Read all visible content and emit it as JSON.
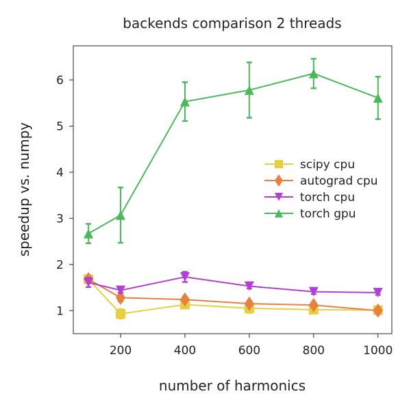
{
  "chart_data": {
    "type": "line",
    "title": "backends comparison 2 threads",
    "xlabel": "number of harmonics",
    "ylabel": "speedup vs. numpy",
    "x": [
      100,
      200,
      400,
      600,
      800,
      1000
    ],
    "xlim": [
      53,
      1043
    ],
    "ylim": [
      0.5,
      6.74
    ],
    "xticks": [
      200,
      400,
      600,
      800,
      1000
    ],
    "yticks": [
      1,
      2,
      3,
      4,
      5,
      6
    ],
    "grid": false,
    "legend_position": "center-right",
    "series": [
      {
        "name": "scipy cpu",
        "color": "#e8cf3f",
        "marker": "square",
        "values": [
          1.68,
          0.93,
          1.13,
          1.05,
          1.02,
          1.01
        ],
        "errors": [
          0.06,
          0.1,
          0.08,
          0.1,
          0.06,
          0.05
        ]
      },
      {
        "name": "autograd cpu",
        "color": "#e8803f",
        "marker": "diamond",
        "values": [
          1.68,
          1.28,
          1.24,
          1.15,
          1.12,
          1.0
        ],
        "errors": [
          0.06,
          0.08,
          0.06,
          0.06,
          0.06,
          0.05
        ]
      },
      {
        "name": "torch cpu",
        "color": "#b33fd6",
        "marker": "triangle-down",
        "values": [
          1.61,
          1.44,
          1.73,
          1.53,
          1.41,
          1.39
        ],
        "errors": [
          0.1,
          0.05,
          0.11,
          0.05,
          0.05,
          0.05
        ]
      },
      {
        "name": "torch gpu",
        "color": "#4cb85c",
        "marker": "triangle-up",
        "values": [
          2.67,
          3.07,
          5.53,
          5.78,
          6.14,
          5.61
        ],
        "errors": [
          0.21,
          0.6,
          0.42,
          0.6,
          0.32,
          0.46
        ]
      }
    ]
  }
}
